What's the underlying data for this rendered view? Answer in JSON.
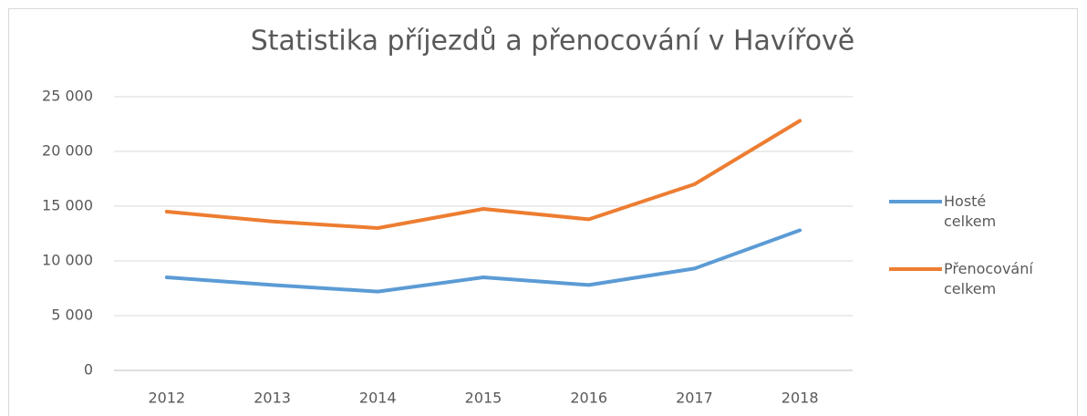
{
  "chart_data": {
    "type": "line",
    "title": "Statistika příjezdů a přenocování v Havířově",
    "categories": [
      "2012",
      "2013",
      "2014",
      "2015",
      "2016",
      "2017",
      "2018"
    ],
    "series": [
      {
        "name": "Hosté celkem",
        "color": "#5b9bd5",
        "values": [
          8500,
          7800,
          7200,
          8500,
          7800,
          9300,
          12800
        ]
      },
      {
        "name": "Přenocování celkem",
        "color": "#ed7d31",
        "values": [
          14500,
          13600,
          13000,
          14750,
          13800,
          17000,
          22800
        ]
      }
    ],
    "ylim": [
      0,
      25000
    ],
    "yticks": [
      0,
      {
        "value": 5000,
        "label": "5 000"
      },
      {
        "value": 10000,
        "label": "10 000"
      },
      {
        "value": 15000,
        "label": "15 000"
      },
      {
        "value": 20000,
        "label": "20 000"
      },
      {
        "value": 25000,
        "label": "25 000"
      }
    ],
    "grid": true,
    "legend": "right"
  }
}
